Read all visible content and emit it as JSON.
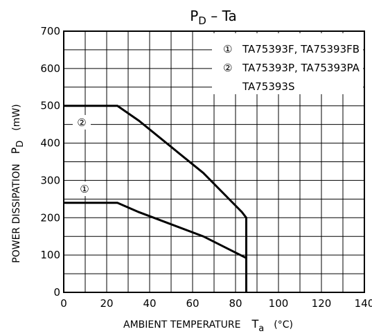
{
  "chart_data": {
    "type": "line",
    "title": {
      "main": "P",
      "sub": "D",
      "tail": " – Ta"
    },
    "xlabel": {
      "main": "AMBIENT TEMPERATURE",
      "symbol": "T",
      "sub": "a",
      "unit": "(°C)"
    },
    "ylabel": {
      "main": "POWER DISSIPATION",
      "symbol": "P",
      "sub": "D",
      "unit": "(mW)"
    },
    "xlim": [
      0,
      140
    ],
    "ylim": [
      0,
      700
    ],
    "x_ticks": [
      0,
      20,
      40,
      60,
      80,
      100,
      120,
      140
    ],
    "y_ticks": [
      0,
      100,
      200,
      300,
      400,
      500,
      600,
      700
    ],
    "x_minor_step": 10,
    "y_minor_step": 50,
    "grid": true,
    "legend_position": "top-right",
    "legend": [
      {
        "marker": "①",
        "text": "TA75393F, TA75393FB"
      },
      {
        "marker": "②",
        "text": "TA75393P, TA75393PA"
      },
      {
        "marker": "",
        "text": "TA75393S"
      }
    ],
    "series": [
      {
        "marker": "②",
        "x": [
          0,
          25,
          35,
          65,
          83,
          85,
          85
        ],
        "y": [
          500,
          500,
          460,
          320,
          215,
          200,
          0
        ]
      },
      {
        "marker": "①",
        "x": [
          0,
          25,
          35,
          65,
          85,
          85
        ],
        "y": [
          240,
          240,
          215,
          150,
          92,
          0
        ]
      }
    ],
    "colors": {
      "line": "#000000",
      "grid": "#000000",
      "background": "#ffffff"
    }
  }
}
